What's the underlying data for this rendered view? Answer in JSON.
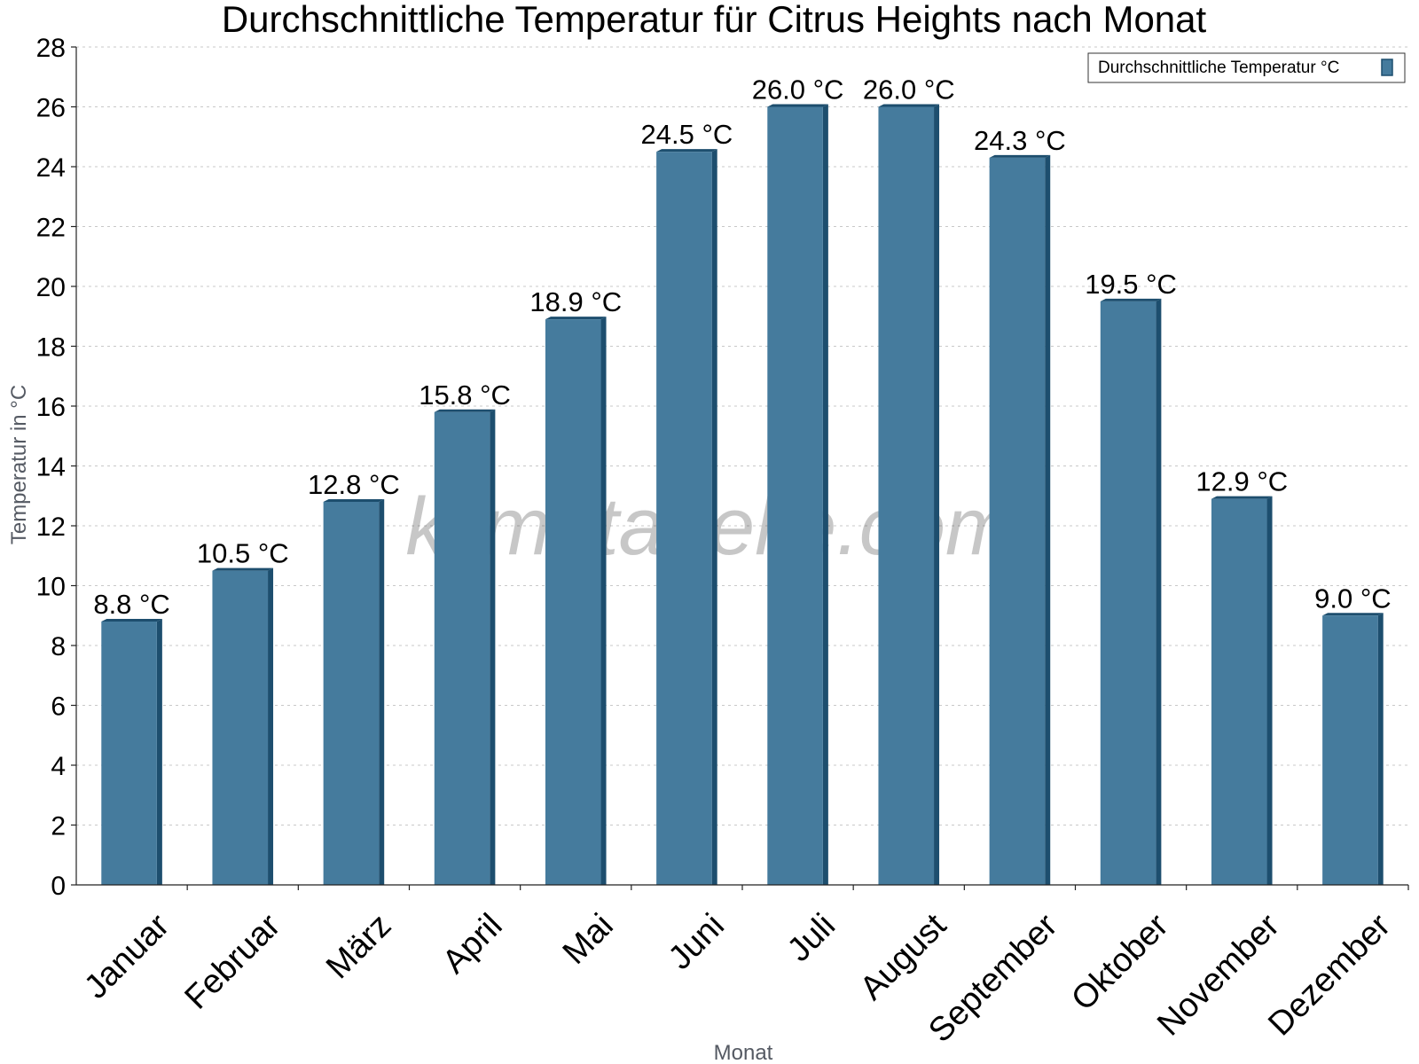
{
  "chart_data": {
    "type": "bar",
    "title": "Durchschnittliche Temperatur für Citrus Heights nach Monat",
    "xlabel": "Monat",
    "ylabel": "Temperatur in °C",
    "categories": [
      "Januar",
      "Februar",
      "März",
      "April",
      "Mai",
      "Juni",
      "Juli",
      "August",
      "September",
      "Oktober",
      "November",
      "Dezember"
    ],
    "series": [
      {
        "name": "Durchschnittliche Temperatur °C",
        "values": [
          8.8,
          10.5,
          12.8,
          15.8,
          18.9,
          24.5,
          26.0,
          26.0,
          24.3,
          19.5,
          12.9,
          9.0
        ],
        "data_labels": [
          "8.8 °C",
          "10.5 °C",
          "12.8 °C",
          "15.8 °C",
          "18.9 °C",
          "24.5 °C",
          "26.0 °C",
          "26.0 °C",
          "24.3 °C",
          "19.5 °C",
          "12.9 °C",
          "9.0 °C"
        ],
        "color": "#457b9d",
        "edge_color": "#1d4e6e"
      }
    ],
    "ylim": [
      0,
      28
    ],
    "yticks": [
      "0",
      "2",
      "4",
      "6",
      "8",
      "10",
      "12",
      "14",
      "16",
      "18",
      "20",
      "22",
      "24",
      "26",
      "28"
    ],
    "grid": true,
    "legend_position": "top-right"
  },
  "watermark": "klimatabelle.com"
}
